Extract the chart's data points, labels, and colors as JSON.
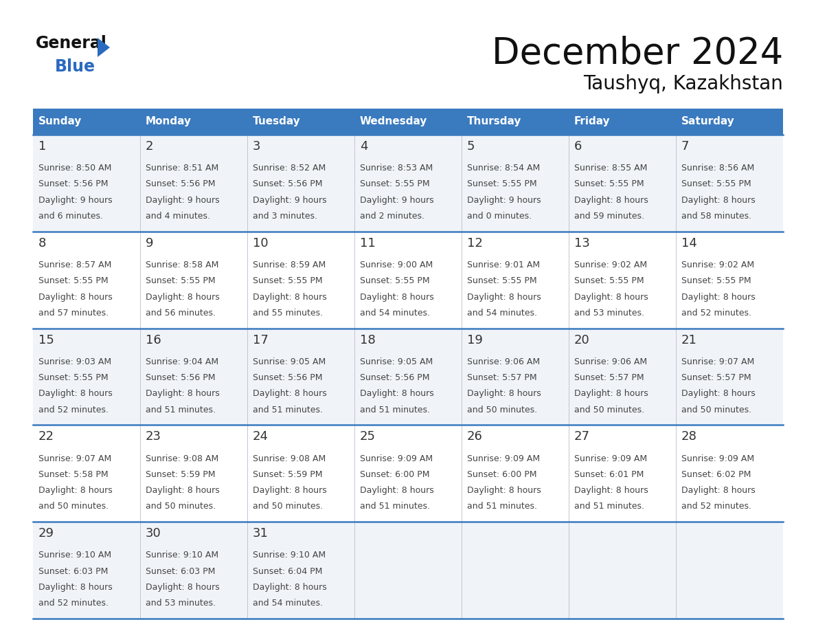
{
  "title": "December 2024",
  "subtitle": "Taushyq, Kazakhstan",
  "header_color": "#3a7abf",
  "header_text_color": "#ffffff",
  "days_of_week": [
    "Sunday",
    "Monday",
    "Tuesday",
    "Wednesday",
    "Thursday",
    "Friday",
    "Saturday"
  ],
  "row_bg_even": "#f0f4f8",
  "row_bg_odd": "#ffffff",
  "cell_border_color": "#3a7abf",
  "day_number_color": "#333333",
  "cell_text_color": "#444444",
  "logo_general_color": "#111111",
  "logo_blue_color": "#2a6abf",
  "logo_triangle_color": "#2a6abf",
  "title_color": "#111111",
  "subtitle_color": "#111111",
  "calendar_data": [
    [
      {
        "day": 1,
        "sunrise": "8:50 AM",
        "sunset": "5:56 PM",
        "daylight_hours": 9,
        "daylight_minutes": 6
      },
      {
        "day": 2,
        "sunrise": "8:51 AM",
        "sunset": "5:56 PM",
        "daylight_hours": 9,
        "daylight_minutes": 4
      },
      {
        "day": 3,
        "sunrise": "8:52 AM",
        "sunset": "5:56 PM",
        "daylight_hours": 9,
        "daylight_minutes": 3
      },
      {
        "day": 4,
        "sunrise": "8:53 AM",
        "sunset": "5:55 PM",
        "daylight_hours": 9,
        "daylight_minutes": 2
      },
      {
        "day": 5,
        "sunrise": "8:54 AM",
        "sunset": "5:55 PM",
        "daylight_hours": 9,
        "daylight_minutes": 0
      },
      {
        "day": 6,
        "sunrise": "8:55 AM",
        "sunset": "5:55 PM",
        "daylight_hours": 8,
        "daylight_minutes": 59
      },
      {
        "day": 7,
        "sunrise": "8:56 AM",
        "sunset": "5:55 PM",
        "daylight_hours": 8,
        "daylight_minutes": 58
      }
    ],
    [
      {
        "day": 8,
        "sunrise": "8:57 AM",
        "sunset": "5:55 PM",
        "daylight_hours": 8,
        "daylight_minutes": 57
      },
      {
        "day": 9,
        "sunrise": "8:58 AM",
        "sunset": "5:55 PM",
        "daylight_hours": 8,
        "daylight_minutes": 56
      },
      {
        "day": 10,
        "sunrise": "8:59 AM",
        "sunset": "5:55 PM",
        "daylight_hours": 8,
        "daylight_minutes": 55
      },
      {
        "day": 11,
        "sunrise": "9:00 AM",
        "sunset": "5:55 PM",
        "daylight_hours": 8,
        "daylight_minutes": 54
      },
      {
        "day": 12,
        "sunrise": "9:01 AM",
        "sunset": "5:55 PM",
        "daylight_hours": 8,
        "daylight_minutes": 54
      },
      {
        "day": 13,
        "sunrise": "9:02 AM",
        "sunset": "5:55 PM",
        "daylight_hours": 8,
        "daylight_minutes": 53
      },
      {
        "day": 14,
        "sunrise": "9:02 AM",
        "sunset": "5:55 PM",
        "daylight_hours": 8,
        "daylight_minutes": 52
      }
    ],
    [
      {
        "day": 15,
        "sunrise": "9:03 AM",
        "sunset": "5:55 PM",
        "daylight_hours": 8,
        "daylight_minutes": 52
      },
      {
        "day": 16,
        "sunrise": "9:04 AM",
        "sunset": "5:56 PM",
        "daylight_hours": 8,
        "daylight_minutes": 51
      },
      {
        "day": 17,
        "sunrise": "9:05 AM",
        "sunset": "5:56 PM",
        "daylight_hours": 8,
        "daylight_minutes": 51
      },
      {
        "day": 18,
        "sunrise": "9:05 AM",
        "sunset": "5:56 PM",
        "daylight_hours": 8,
        "daylight_minutes": 51
      },
      {
        "day": 19,
        "sunrise": "9:06 AM",
        "sunset": "5:57 PM",
        "daylight_hours": 8,
        "daylight_minutes": 50
      },
      {
        "day": 20,
        "sunrise": "9:06 AM",
        "sunset": "5:57 PM",
        "daylight_hours": 8,
        "daylight_minutes": 50
      },
      {
        "day": 21,
        "sunrise": "9:07 AM",
        "sunset": "5:57 PM",
        "daylight_hours": 8,
        "daylight_minutes": 50
      }
    ],
    [
      {
        "day": 22,
        "sunrise": "9:07 AM",
        "sunset": "5:58 PM",
        "daylight_hours": 8,
        "daylight_minutes": 50
      },
      {
        "day": 23,
        "sunrise": "9:08 AM",
        "sunset": "5:59 PM",
        "daylight_hours": 8,
        "daylight_minutes": 50
      },
      {
        "day": 24,
        "sunrise": "9:08 AM",
        "sunset": "5:59 PM",
        "daylight_hours": 8,
        "daylight_minutes": 50
      },
      {
        "day": 25,
        "sunrise": "9:09 AM",
        "sunset": "6:00 PM",
        "daylight_hours": 8,
        "daylight_minutes": 51
      },
      {
        "day": 26,
        "sunrise": "9:09 AM",
        "sunset": "6:00 PM",
        "daylight_hours": 8,
        "daylight_minutes": 51
      },
      {
        "day": 27,
        "sunrise": "9:09 AM",
        "sunset": "6:01 PM",
        "daylight_hours": 8,
        "daylight_minutes": 51
      },
      {
        "day": 28,
        "sunrise": "9:09 AM",
        "sunset": "6:02 PM",
        "daylight_hours": 8,
        "daylight_minutes": 52
      }
    ],
    [
      {
        "day": 29,
        "sunrise": "9:10 AM",
        "sunset": "6:03 PM",
        "daylight_hours": 8,
        "daylight_minutes": 52
      },
      {
        "day": 30,
        "sunrise": "9:10 AM",
        "sunset": "6:03 PM",
        "daylight_hours": 8,
        "daylight_minutes": 53
      },
      {
        "day": 31,
        "sunrise": "9:10 AM",
        "sunset": "6:04 PM",
        "daylight_hours": 8,
        "daylight_minutes": 54
      },
      null,
      null,
      null,
      null
    ]
  ]
}
